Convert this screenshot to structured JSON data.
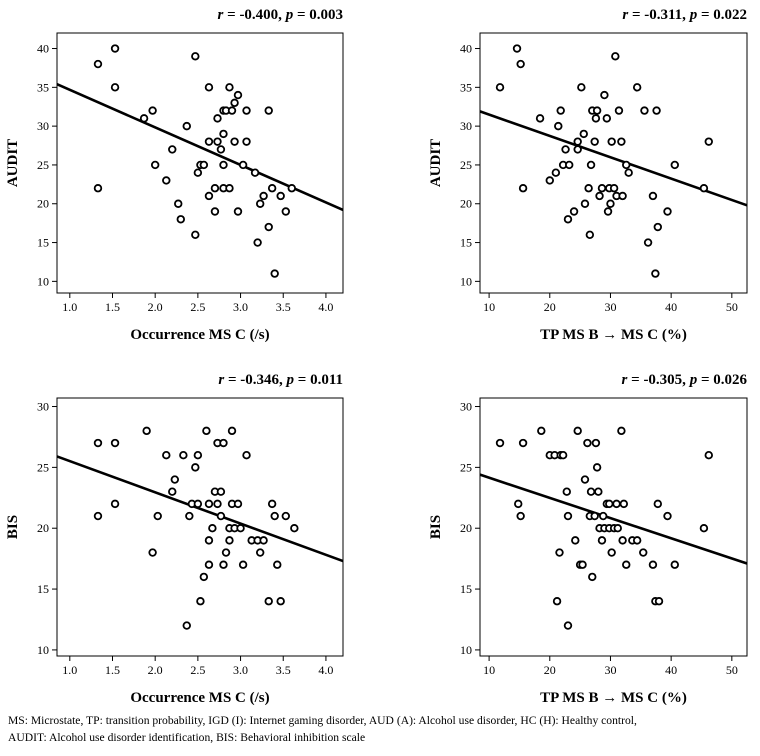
{
  "caption": {
    "line1": "MS: Microstate, TP: transition probability, IGD (I): Internet gaming disorder, AUD (A): Alcohol use disorder, HC (H): Healthy control,",
    "line2": "AUDIT: Alcohol use disorder identification, BIS: Behavioral inhibition scale"
  },
  "colors": {
    "marker": "#000000",
    "line": "#000000",
    "background": "#ffffff"
  },
  "chart_data": [
    {
      "type": "scatter",
      "title_r": "r = -0.400",
      "title_p": "p = 0.003",
      "xlabel": "Occurrence MS C (/s)",
      "ylabel": "AUDIT",
      "xlim": [
        0.85,
        4.2
      ],
      "ylim": [
        8.5,
        42
      ],
      "xticks": [
        1.0,
        1.5,
        2.0,
        2.5,
        3.0,
        3.5,
        4.0
      ],
      "xtick_labels": [
        "1.0",
        "1.5",
        "2.0",
        "2.5",
        "3.0",
        "3.5",
        "4.0"
      ],
      "yticks": [
        10,
        15,
        20,
        25,
        30,
        35,
        40
      ],
      "ytick_labels": [
        "10",
        "15",
        "20",
        "25",
        "30",
        "35",
        "40"
      ],
      "fit_line": [
        [
          0.85,
          35.4
        ],
        [
          4.2,
          19.2
        ]
      ],
      "points": [
        [
          1.33,
          38
        ],
        [
          1.33,
          22
        ],
        [
          1.53,
          40
        ],
        [
          1.53,
          35
        ],
        [
          1.87,
          31
        ],
        [
          1.97,
          32
        ],
        [
          2.0,
          25
        ],
        [
          2.13,
          23
        ],
        [
          2.2,
          27
        ],
        [
          2.27,
          20
        ],
        [
          2.3,
          18
        ],
        [
          2.37,
          30
        ],
        [
          2.47,
          16
        ],
        [
          2.47,
          39
        ],
        [
          2.5,
          24
        ],
        [
          2.53,
          25
        ],
        [
          2.57,
          25
        ],
        [
          2.63,
          35
        ],
        [
          2.63,
          28
        ],
        [
          2.63,
          21
        ],
        [
          2.7,
          19
        ],
        [
          2.7,
          22
        ],
        [
          2.73,
          28
        ],
        [
          2.73,
          31
        ],
        [
          2.77,
          27
        ],
        [
          2.8,
          25
        ],
        [
          2.8,
          32
        ],
        [
          2.8,
          29
        ],
        [
          2.8,
          22
        ],
        [
          2.83,
          32
        ],
        [
          2.87,
          35
        ],
        [
          2.87,
          22
        ],
        [
          2.9,
          32
        ],
        [
          2.93,
          28
        ],
        [
          2.93,
          33
        ],
        [
          2.97,
          34
        ],
        [
          2.97,
          19
        ],
        [
          3.03,
          25
        ],
        [
          3.07,
          28
        ],
        [
          3.07,
          32
        ],
        [
          3.17,
          24
        ],
        [
          3.2,
          15
        ],
        [
          3.23,
          20
        ],
        [
          3.27,
          21
        ],
        [
          3.33,
          17
        ],
        [
          3.33,
          32
        ],
        [
          3.37,
          22
        ],
        [
          3.4,
          11
        ],
        [
          3.47,
          21
        ],
        [
          3.53,
          19
        ],
        [
          3.6,
          22
        ]
      ]
    },
    {
      "type": "scatter",
      "title_r": "r = -0.311",
      "title_p": "p = 0.022",
      "xlabel": "TP MS B → MS C (%)",
      "ylabel": "AUDIT",
      "xlim": [
        8.5,
        52.5
      ],
      "ylim": [
        8.5,
        42
      ],
      "xticks": [
        10,
        20,
        30,
        40,
        50
      ],
      "xtick_labels": [
        "10",
        "20",
        "30",
        "40",
        "50"
      ],
      "yticks": [
        10,
        15,
        20,
        25,
        30,
        35,
        40
      ],
      "ytick_labels": [
        "10",
        "15",
        "20",
        "25",
        "30",
        "35",
        "40"
      ],
      "fit_line": [
        [
          8.5,
          31.9
        ],
        [
          52.5,
          19.8
        ]
      ],
      "points": [
        [
          11.8,
          35
        ],
        [
          14.6,
          40
        ],
        [
          15.2,
          38
        ],
        [
          15.6,
          22
        ],
        [
          18.4,
          31
        ],
        [
          20.0,
          23
        ],
        [
          21.0,
          24
        ],
        [
          21.4,
          30
        ],
        [
          21.8,
          32
        ],
        [
          22.2,
          25
        ],
        [
          22.6,
          27
        ],
        [
          23.0,
          18
        ],
        [
          23.2,
          25
        ],
        [
          24.0,
          19
        ],
        [
          24.6,
          28
        ],
        [
          24.6,
          27
        ],
        [
          25.2,
          35
        ],
        [
          25.6,
          29
        ],
        [
          25.8,
          20
        ],
        [
          26.4,
          22
        ],
        [
          26.6,
          16
        ],
        [
          26.8,
          25
        ],
        [
          27.0,
          32
        ],
        [
          27.4,
          28
        ],
        [
          27.6,
          31
        ],
        [
          27.8,
          32
        ],
        [
          28.2,
          21
        ],
        [
          28.6,
          22
        ],
        [
          29.0,
          34
        ],
        [
          29.4,
          31
        ],
        [
          29.6,
          19
        ],
        [
          29.8,
          22
        ],
        [
          30.0,
          20
        ],
        [
          30.2,
          28
        ],
        [
          30.6,
          22
        ],
        [
          30.8,
          39
        ],
        [
          31.0,
          21
        ],
        [
          31.4,
          32
        ],
        [
          31.8,
          28
        ],
        [
          32.0,
          21
        ],
        [
          32.6,
          25
        ],
        [
          33.0,
          24
        ],
        [
          34.4,
          35
        ],
        [
          35.6,
          32
        ],
        [
          36.2,
          15
        ],
        [
          37.0,
          21
        ],
        [
          37.4,
          11
        ],
        [
          37.6,
          32
        ],
        [
          37.8,
          17
        ],
        [
          39.4,
          19
        ],
        [
          40.6,
          25
        ],
        [
          45.4,
          22
        ],
        [
          46.2,
          28
        ]
      ]
    },
    {
      "type": "scatter",
      "title_r": "r = -0.346",
      "title_p": "p = 0.011",
      "xlabel": "Occurrence MS C (/s)",
      "ylabel": "BIS",
      "xlim": [
        0.85,
        4.2
      ],
      "ylim": [
        9.5,
        30.7
      ],
      "xticks": [
        1.0,
        1.5,
        2.0,
        2.5,
        3.0,
        3.5,
        4.0
      ],
      "xtick_labels": [
        "1.0",
        "1.5",
        "2.0",
        "2.5",
        "3.0",
        "3.5",
        "4.0"
      ],
      "yticks": [
        10,
        15,
        20,
        25,
        30
      ],
      "ytick_labels": [
        "10",
        "15",
        "20",
        "25",
        "30"
      ],
      "fit_line": [
        [
          0.85,
          25.9
        ],
        [
          4.2,
          17.3
        ]
      ],
      "points": [
        [
          1.33,
          27
        ],
        [
          1.33,
          21
        ],
        [
          1.53,
          27
        ],
        [
          1.53,
          22
        ],
        [
          1.9,
          28
        ],
        [
          1.97,
          18
        ],
        [
          2.03,
          21
        ],
        [
          2.13,
          26
        ],
        [
          2.2,
          23
        ],
        [
          2.23,
          24
        ],
        [
          2.33,
          26
        ],
        [
          2.37,
          12
        ],
        [
          2.4,
          21
        ],
        [
          2.43,
          22
        ],
        [
          2.47,
          25
        ],
        [
          2.5,
          26
        ],
        [
          2.5,
          22
        ],
        [
          2.53,
          14
        ],
        [
          2.57,
          16
        ],
        [
          2.6,
          28
        ],
        [
          2.63,
          17
        ],
        [
          2.63,
          22
        ],
        [
          2.63,
          19
        ],
        [
          2.67,
          20
        ],
        [
          2.7,
          23
        ],
        [
          2.73,
          22
        ],
        [
          2.73,
          27
        ],
        [
          2.77,
          23
        ],
        [
          2.77,
          21
        ],
        [
          2.8,
          27
        ],
        [
          2.8,
          17
        ],
        [
          2.83,
          18
        ],
        [
          2.87,
          20
        ],
        [
          2.87,
          19
        ],
        [
          2.9,
          22
        ],
        [
          2.9,
          28
        ],
        [
          2.93,
          20
        ],
        [
          2.97,
          22
        ],
        [
          3.0,
          20
        ],
        [
          3.03,
          17
        ],
        [
          3.07,
          26
        ],
        [
          3.13,
          19
        ],
        [
          3.2,
          19
        ],
        [
          3.23,
          18
        ],
        [
          3.27,
          19
        ],
        [
          3.33,
          14
        ],
        [
          3.37,
          22
        ],
        [
          3.4,
          21
        ],
        [
          3.43,
          17
        ],
        [
          3.47,
          14
        ],
        [
          3.53,
          21
        ],
        [
          3.63,
          20
        ]
      ]
    },
    {
      "type": "scatter",
      "title_r": "r = -0.305",
      "title_p": "p = 0.026",
      "xlabel": "TP MS B → MS C (%)",
      "ylabel": "BIS",
      "xlim": [
        8.5,
        52.5
      ],
      "ylim": [
        9.5,
        30.7
      ],
      "xticks": [
        10,
        20,
        30,
        40,
        50
      ],
      "xtick_labels": [
        "10",
        "20",
        "30",
        "40",
        "50"
      ],
      "yticks": [
        10,
        15,
        20,
        25,
        30
      ],
      "ytick_labels": [
        "10",
        "15",
        "20",
        "25",
        "30"
      ],
      "fit_line": [
        [
          8.5,
          24.4
        ],
        [
          52.5,
          17.1
        ]
      ],
      "points": [
        [
          11.8,
          27
        ],
        [
          14.8,
          22
        ],
        [
          15.2,
          21
        ],
        [
          15.6,
          27
        ],
        [
          18.6,
          28
        ],
        [
          20.0,
          26
        ],
        [
          20.8,
          26
        ],
        [
          21.2,
          14
        ],
        [
          21.6,
          18
        ],
        [
          21.8,
          26
        ],
        [
          22.2,
          26
        ],
        [
          22.8,
          23
        ],
        [
          23.0,
          12
        ],
        [
          23.0,
          21
        ],
        [
          24.2,
          19
        ],
        [
          24.6,
          28
        ],
        [
          25.0,
          17
        ],
        [
          25.4,
          17
        ],
        [
          25.8,
          24
        ],
        [
          26.2,
          27
        ],
        [
          26.6,
          21
        ],
        [
          26.8,
          23
        ],
        [
          27.0,
          16
        ],
        [
          27.4,
          21
        ],
        [
          27.6,
          27
        ],
        [
          27.8,
          25
        ],
        [
          28.0,
          23
        ],
        [
          28.2,
          20
        ],
        [
          28.6,
          19
        ],
        [
          28.8,
          21
        ],
        [
          29.0,
          20
        ],
        [
          29.4,
          22
        ],
        [
          29.8,
          20
        ],
        [
          29.8,
          22
        ],
        [
          30.2,
          18
        ],
        [
          30.6,
          20
        ],
        [
          31.0,
          22
        ],
        [
          31.2,
          20
        ],
        [
          31.8,
          28
        ],
        [
          32.0,
          19
        ],
        [
          32.2,
          22
        ],
        [
          32.6,
          17
        ],
        [
          33.6,
          19
        ],
        [
          34.4,
          19
        ],
        [
          35.4,
          18
        ],
        [
          37.0,
          17
        ],
        [
          37.4,
          14
        ],
        [
          37.8,
          22
        ],
        [
          38.0,
          14
        ],
        [
          39.4,
          21
        ],
        [
          40.6,
          17
        ],
        [
          45.4,
          20
        ],
        [
          46.2,
          26
        ]
      ]
    }
  ]
}
